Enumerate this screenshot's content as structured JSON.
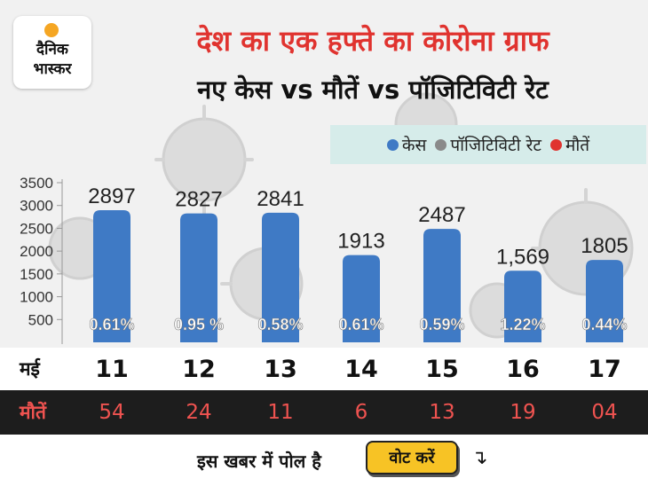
{
  "logo": {
    "line1": "दैनिक",
    "line2": "भास्कर"
  },
  "colors": {
    "cases": "#3f7ac5",
    "positivity": "#8a8a8a",
    "deaths": "#e0332f",
    "title": "#e0332f"
  },
  "chart_data": {
    "type": "bar",
    "title": "देश का एक हफ्ते का कोरोना ग्राफ",
    "subtitle": "नए केस vs मौतें vs पॉजिटिविटी रेट",
    "xlabel": "मई",
    "ylabel": "",
    "categories": [
      "11",
      "12",
      "13",
      "14",
      "15",
      "16",
      "17"
    ],
    "ylim": [
      0,
      3500
    ],
    "yticks": [
      500,
      1000,
      1500,
      2000,
      2500,
      3000,
      3500
    ],
    "legend_position": "top-right",
    "legend": [
      "केस",
      "पॉजिटिविटी रेट",
      "मौतें"
    ],
    "series": [
      {
        "name": "केस",
        "values": [
          2897,
          2827,
          2841,
          1913,
          2487,
          1569,
          1805
        ],
        "labels": [
          "2897",
          "2827",
          "2841",
          "1913",
          "2487",
          "1,569",
          "1805"
        ]
      },
      {
        "name": "पॉजिटिविटी रेट",
        "values": [
          0.61,
          0.95,
          0.58,
          0.61,
          0.59,
          1.22,
          0.44
        ],
        "labels": [
          "0.61%",
          "0.95 %",
          "0.58%",
          "0.61%",
          "0.59%",
          "1.22%",
          "0.44%"
        ]
      },
      {
        "name": "मौतें",
        "values": [
          54,
          24,
          11,
          6,
          13,
          19,
          4
        ],
        "labels": [
          "54",
          "24",
          "11",
          "6",
          "13",
          "19",
          "04"
        ]
      }
    ],
    "rows": {
      "date_label": "मई",
      "deaths_label": "मौतें"
    }
  },
  "poll": {
    "text": "इस खबर में पोल है",
    "button_label": "वोट करें",
    "arrow_icon": "arrow-down-right-icon"
  }
}
